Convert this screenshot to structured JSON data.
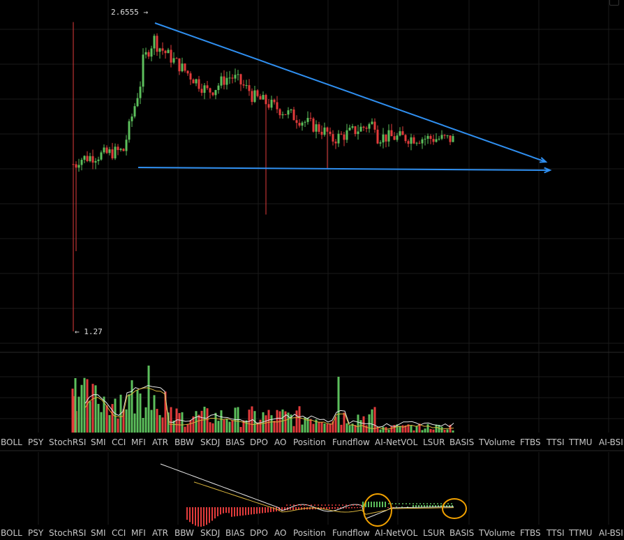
{
  "price_labels": {
    "high": "2.6555",
    "low": "1.27"
  },
  "tabs": [
    "BOLL",
    "PSY",
    "StochRSI",
    "SMI",
    "CCI",
    "MFI",
    "ATR",
    "BBW",
    "SKDJ",
    "BIAS",
    "DPO",
    "AO",
    "Position",
    "Fundflow",
    "AI-NetVOL",
    "LSUR",
    "BASIS",
    "TVolume",
    "FTBS",
    "TTSI",
    "TTMU",
    "AI-BSI"
  ],
  "colors": {
    "up": "#5cbf5c",
    "down": "#e23b3b",
    "trendline": "#2f8ff0",
    "grid": "#1a1a1a",
    "ma_fast": "#e8e8e8",
    "ma_slow": "#d9b43c",
    "highlight_circle": "#f0a000"
  },
  "icons": {
    "corner": "window-control-icon"
  }
}
